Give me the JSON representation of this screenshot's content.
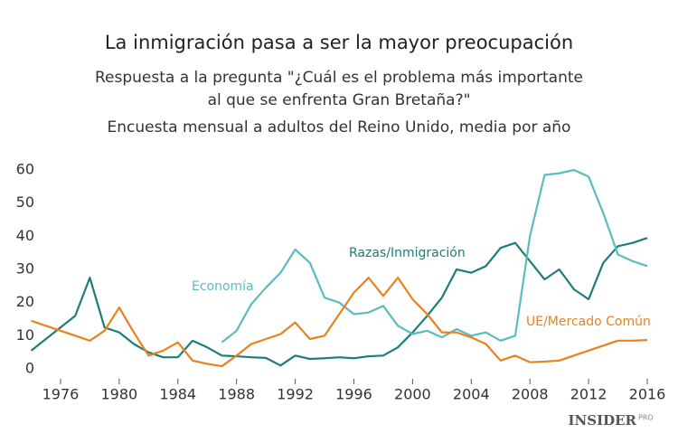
{
  "chart_data": {
    "type": "line",
    "title": "La inmigración pasa a ser la mayor preocupación",
    "subtitle": [
      "Respuesta a la pregunta \"¿Cuál es el problema más importante",
      "al que se enfrenta Gran Bretaña?\"",
      "Encuesta mensual a adultos del Reino Unido, media por año"
    ],
    "x": [
      1974,
      1975,
      1976,
      1977,
      1978,
      1979,
      1980,
      1981,
      1982,
      1983,
      1984,
      1985,
      1986,
      1987,
      1988,
      1989,
      1990,
      1991,
      1992,
      1993,
      1994,
      1995,
      1996,
      1997,
      1998,
      1999,
      2000,
      2001,
      2002,
      2003,
      2004,
      2005,
      2006,
      2007,
      2008,
      2009,
      2010,
      2011,
      2012,
      2013,
      2014,
      2015,
      2016
    ],
    "series": [
      {
        "name": "Razas/Inmigración",
        "color": "#1d7d7a",
        "values": [
          5.5,
          9,
          12.5,
          16,
          27.5,
          12.5,
          11,
          7.5,
          5,
          3.5,
          3.5,
          8.5,
          6.5,
          4,
          3.8,
          3.5,
          3.3,
          1,
          4,
          3,
          3.2,
          3.5,
          3.2,
          3.8,
          4,
          6.5,
          11,
          16,
          21.5,
          30,
          29,
          31,
          36.5,
          38,
          32.5,
          27,
          30,
          24,
          21,
          32,
          37,
          38,
          39.5
        ]
      },
      {
        "name": "Economía",
        "color": "#5bbcc0",
        "values": [
          null,
          null,
          null,
          null,
          null,
          null,
          null,
          null,
          null,
          null,
          null,
          null,
          null,
          8,
          11.5,
          19.5,
          24.5,
          29,
          36,
          32,
          21.5,
          20,
          16.5,
          17,
          19,
          13,
          10.5,
          11.5,
          9.5,
          12,
          10,
          11,
          8.5,
          10,
          40,
          58.5,
          59,
          60,
          58,
          47,
          34.5,
          32.5,
          31
        ]
      },
      {
        "name": "UE/Mercado Común",
        "color": "#e8821f",
        "values": [
          14.5,
          13,
          11.5,
          10,
          8.5,
          11.5,
          18.5,
          11,
          4,
          5.5,
          8,
          2.5,
          1.5,
          0.8,
          4,
          7.5,
          9,
          10.5,
          14,
          9,
          10,
          16.5,
          23,
          27.5,
          22,
          27.5,
          21,
          16.5,
          11,
          11,
          9.5,
          7.5,
          2.5,
          4,
          2,
          2.2,
          2.5,
          4,
          5.5,
          7,
          8.5,
          8.5,
          8.7
        ]
      }
    ],
    "xlim": [
      1974,
      2016
    ],
    "xticks": [
      1976,
      1980,
      1984,
      1988,
      1992,
      1996,
      2000,
      2004,
      2008,
      2012,
      2016
    ],
    "ylim": [
      0,
      60
    ],
    "yticks": [
      0,
      10,
      20,
      30,
      40,
      50,
      60
    ],
    "grid": false,
    "source": "INSIDER",
    "source_suffix": "PRO"
  }
}
